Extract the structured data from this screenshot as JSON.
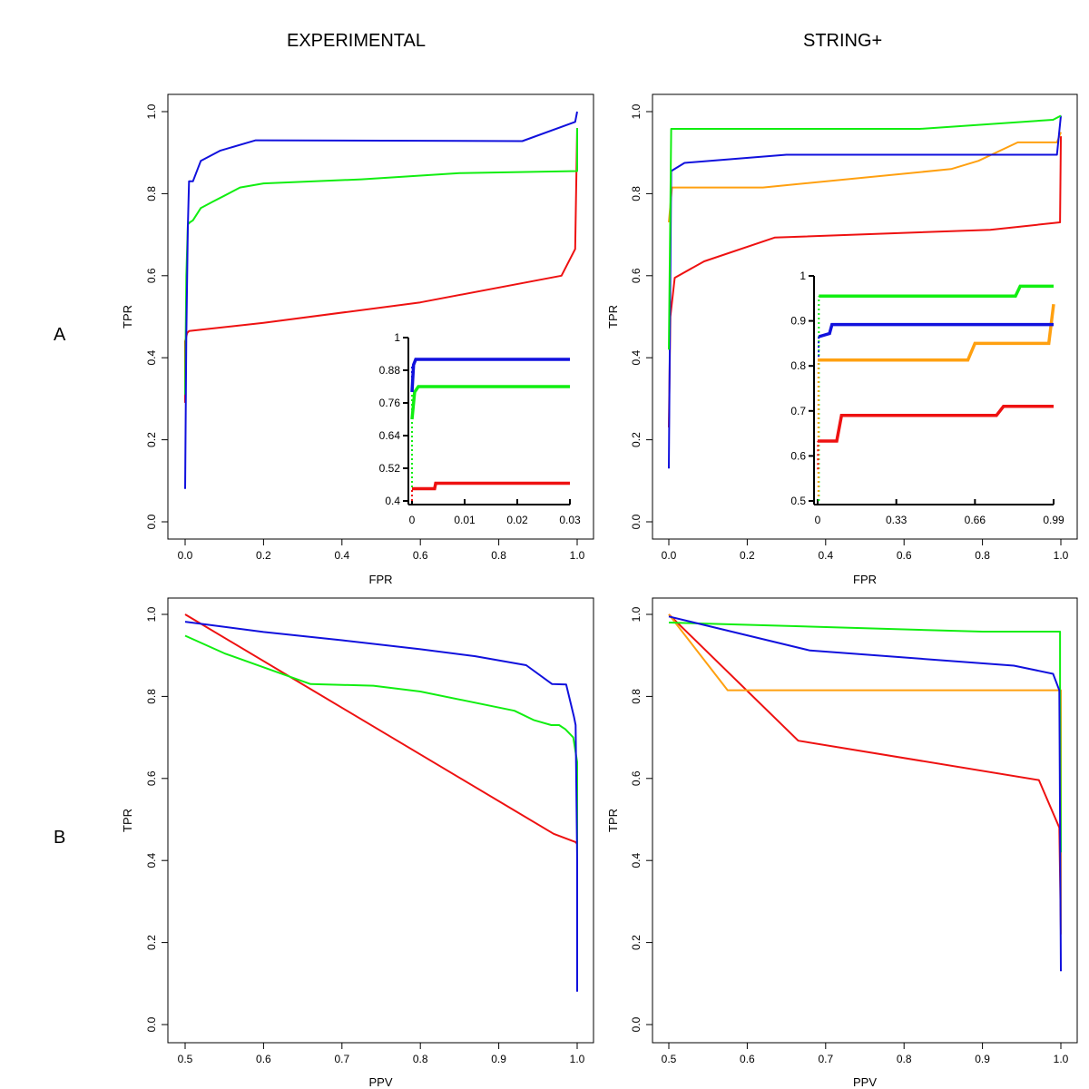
{
  "column_titles": [
    "EXPERIMENTAL",
    "STRING+"
  ],
  "row_labels": [
    "A",
    "B"
  ],
  "colors": {
    "red": "#ee1111",
    "green": "#11ee11",
    "blue": "#1111dd",
    "orange": "#ffa010"
  },
  "chart_data": [
    {
      "id": "A-experimental",
      "type": "line",
      "title": "",
      "xlabel": "FPR",
      "ylabel": "TPR",
      "xlim": [
        0,
        1
      ],
      "ylim": [
        0,
        1
      ],
      "xticks": [
        "0.0",
        "0.2",
        "0.4",
        "0.6",
        "0.8",
        "1.0"
      ],
      "xtick_values": [
        0,
        0.2,
        0.4,
        0.6,
        0.8,
        1.0
      ],
      "yticks": [
        "0.0",
        "0.2",
        "0.4",
        "0.6",
        "0.8",
        "1.0"
      ],
      "ytick_values": [
        0,
        0.2,
        0.4,
        0.6,
        0.8,
        1.0
      ],
      "series": [
        {
          "name": "red",
          "color": "red",
          "x": [
            0,
            0,
            0.005,
            0.01,
            0.2,
            0.6,
            0.96,
            0.995,
            1.0
          ],
          "y": [
            0.29,
            0.44,
            0.46,
            0.465,
            0.485,
            0.535,
            0.6,
            0.665,
            0.96
          ]
        },
        {
          "name": "green",
          "color": "green",
          "x": [
            0,
            0.003,
            0.007,
            0.012,
            0.02,
            0.04,
            0.07,
            0.1,
            0.14,
            0.2,
            0.45,
            0.7,
            1.0,
            1.0
          ],
          "y": [
            0.31,
            0.6,
            0.725,
            0.73,
            0.735,
            0.765,
            0.78,
            0.795,
            0.815,
            0.825,
            0.835,
            0.85,
            0.855,
            0.96
          ]
        },
        {
          "name": "blue",
          "color": "blue",
          "x": [
            0,
            0.003,
            0.007,
            0.01,
            0.02,
            0.04,
            0.09,
            0.18,
            0.86,
            0.995,
            1.0
          ],
          "y": [
            0.08,
            0.45,
            0.72,
            0.83,
            0.83,
            0.88,
            0.905,
            0.93,
            0.928,
            0.975,
            1.0
          ]
        }
      ],
      "inset": {
        "xlim": [
          0,
          0.03
        ],
        "ylim": [
          0.4,
          1
        ],
        "xticks": [
          "0",
          "0.01",
          "0.02",
          "0.03"
        ],
        "xtick_values": [
          0,
          0.01,
          0.02,
          0.03
        ],
        "yticks": [
          "0.4",
          "0.52",
          "0.64",
          "0.76",
          "0.88",
          "1"
        ],
        "ytick_values": [
          0.4,
          0.52,
          0.64,
          0.76,
          0.88,
          1
        ],
        "series": [
          {
            "name": "red",
            "color": "red",
            "x": [
              0,
              0.0043,
              0.0045,
              0.03
            ],
            "y": [
              0.445,
              0.445,
              0.465,
              0.465
            ]
          },
          {
            "name": "green",
            "color": "green",
            "x": [
              0,
              0.0005,
              0.0012,
              0.03
            ],
            "y": [
              0.7,
              0.8,
              0.82,
              0.82
            ]
          },
          {
            "name": "blue",
            "color": "blue",
            "x": [
              0,
              0.0003,
              0.0007,
              0.03
            ],
            "y": [
              0.8,
              0.9,
              0.92,
              0.92
            ]
          }
        ],
        "dotted_series": [
          {
            "name": "green-dotted",
            "color": "green",
            "x": [
              0,
              0
            ],
            "y": [
              0.4,
              0.8
            ]
          },
          {
            "name": "blue-dotted",
            "color": "blue",
            "x": [
              0,
              0
            ],
            "y": [
              0.82,
              0.9
            ]
          },
          {
            "name": "red-dotted",
            "color": "red",
            "x": [
              0,
              0
            ],
            "y": [
              0.4,
              0.445
            ]
          }
        ]
      }
    },
    {
      "id": "A-string",
      "type": "line",
      "title": "",
      "xlabel": "FPR",
      "ylabel": "TPR",
      "xlim": [
        0,
        1
      ],
      "ylim": [
        0,
        1
      ],
      "xticks": [
        "0.0",
        "0.2",
        "0.4",
        "0.6",
        "0.8",
        "1.0"
      ],
      "xtick_values": [
        0,
        0.2,
        0.4,
        0.6,
        0.8,
        1.0
      ],
      "yticks": [
        "0.0",
        "0.2",
        "0.4",
        "0.6",
        "0.8",
        "1.0"
      ],
      "ytick_values": [
        0,
        0.2,
        0.4,
        0.6,
        0.8,
        1.0
      ],
      "series": [
        {
          "name": "red",
          "color": "red",
          "x": [
            0,
            0.004,
            0.015,
            0.09,
            0.27,
            0.82,
            0.998,
            1.0
          ],
          "y": [
            0.23,
            0.5,
            0.595,
            0.635,
            0.693,
            0.712,
            0.73,
            0.94
          ]
        },
        {
          "name": "orange",
          "color": "orange",
          "x": [
            0,
            0.008,
            0.24,
            0.72,
            0.79,
            0.89,
            0.99,
            1.0
          ],
          "y": [
            0.73,
            0.815,
            0.815,
            0.86,
            0.88,
            0.925,
            0.925,
            0.95
          ]
        },
        {
          "name": "blue",
          "color": "blue",
          "x": [
            0,
            0.006,
            0.04,
            0.3,
            0.99,
            1.0
          ],
          "y": [
            0.13,
            0.855,
            0.875,
            0.895,
            0.895,
            0.99
          ]
        },
        {
          "name": "green",
          "color": "green",
          "x": [
            0,
            0.006,
            0.64,
            0.98,
            1.0
          ],
          "y": [
            0.42,
            0.958,
            0.958,
            0.98,
            0.99
          ]
        }
      ],
      "inset": {
        "xlim": [
          0,
          0.99
        ],
        "ylim": [
          0.5,
          1
        ],
        "xticks": [
          "0",
          "0.33",
          "0.66",
          "0.99"
        ],
        "xtick_values": [
          0,
          0.33,
          0.66,
          0.99
        ],
        "yticks": [
          "0.5",
          "0.6",
          "0.7",
          "0.8",
          "0.9",
          "1"
        ],
        "ytick_values": [
          0.5,
          0.6,
          0.7,
          0.8,
          0.9,
          1
        ],
        "series": [
          {
            "name": "red",
            "color": "red",
            "x": [
              0,
              0.08,
              0.1,
              0.75,
              0.78,
              0.99
            ],
            "y": [
              0.633,
              0.633,
              0.69,
              0.69,
              0.71,
              0.71
            ]
          },
          {
            "name": "orange",
            "color": "orange",
            "x": [
              0,
              0.63,
              0.66,
              0.97,
              0.99
            ],
            "y": [
              0.813,
              0.813,
              0.85,
              0.85,
              0.937
            ]
          },
          {
            "name": "blue",
            "color": "blue",
            "x": [
              0.005,
              0.05,
              0.06,
              0.99
            ],
            "y": [
              0.865,
              0.872,
              0.892,
              0.892
            ]
          },
          {
            "name": "green",
            "color": "green",
            "x": [
              0.005,
              0.83,
              0.85,
              0.99
            ],
            "y": [
              0.955,
              0.955,
              0.977,
              0.977
            ]
          }
        ],
        "dotted_series": [
          {
            "name": "green-dotted",
            "color": "green",
            "x": [
              0.005,
              0.005
            ],
            "y": [
              0.5,
              0.955
            ]
          },
          {
            "name": "orange-dotted",
            "color": "orange",
            "x": [
              0.003,
              0.003
            ],
            "y": [
              0.51,
              0.813
            ]
          },
          {
            "name": "red-dotted",
            "color": "red",
            "x": [
              0.001,
              0.001
            ],
            "y": [
              0.57,
              0.633
            ]
          },
          {
            "name": "blue-dotted",
            "color": "blue",
            "x": [
              0.004,
              0.004
            ],
            "y": [
              0.82,
              0.865
            ]
          }
        ]
      }
    },
    {
      "id": "B-experimental",
      "type": "line",
      "title": "",
      "xlabel": "PPV",
      "ylabel": "TPR",
      "xlim": [
        0.5,
        1
      ],
      "ylim": [
        0,
        1
      ],
      "xticks": [
        "0.5",
        "0.6",
        "0.7",
        "0.8",
        "0.9",
        "1.0"
      ],
      "xtick_values": [
        0.5,
        0.6,
        0.7,
        0.8,
        0.9,
        1.0
      ],
      "yticks": [
        "0.0",
        "0.2",
        "0.4",
        "0.6",
        "0.8",
        "1.0"
      ],
      "ytick_values": [
        0,
        0.2,
        0.4,
        0.6,
        0.8,
        1.0
      ],
      "series": [
        {
          "name": "red",
          "color": "red",
          "x": [
            0.5,
            0.97,
            0.998,
            1.0,
            1.0
          ],
          "y": [
            1.0,
            0.465,
            0.445,
            0.44,
            0.29
          ]
        },
        {
          "name": "green",
          "color": "green",
          "x": [
            0.5,
            0.55,
            0.66,
            0.74,
            0.8,
            0.92,
            0.945,
            0.967,
            0.977,
            0.985,
            0.995,
            1.0,
            1.0
          ],
          "y": [
            0.948,
            0.905,
            0.83,
            0.826,
            0.812,
            0.765,
            0.742,
            0.73,
            0.73,
            0.72,
            0.7,
            0.64,
            0.31
          ]
        },
        {
          "name": "blue",
          "color": "blue",
          "x": [
            0.5,
            0.6,
            0.7,
            0.8,
            0.87,
            0.935,
            0.968,
            0.986,
            0.996,
            0.998,
            1.0,
            1.0
          ],
          "y": [
            0.982,
            0.957,
            0.937,
            0.915,
            0.898,
            0.876,
            0.83,
            0.829,
            0.75,
            0.73,
            0.4,
            0.08
          ]
        }
      ]
    },
    {
      "id": "B-string",
      "type": "line",
      "title": "",
      "xlabel": "PPV",
      "ylabel": "TPR",
      "xlim": [
        0.5,
        1
      ],
      "ylim": [
        0,
        1
      ],
      "xticks": [
        "0.5",
        "0.6",
        "0.7",
        "0.8",
        "0.9",
        "1.0"
      ],
      "xtick_values": [
        0.5,
        0.6,
        0.7,
        0.8,
        0.9,
        1.0
      ],
      "yticks": [
        "0.0",
        "0.2",
        "0.4",
        "0.6",
        "0.8",
        "1.0"
      ],
      "ytick_values": [
        0,
        0.2,
        0.4,
        0.6,
        0.8,
        1.0
      ],
      "series": [
        {
          "name": "red",
          "color": "red",
          "x": [
            0.5,
            0.665,
            0.972,
            0.998,
            1.0
          ],
          "y": [
            1.0,
            0.692,
            0.596,
            0.48,
            0.23
          ]
        },
        {
          "name": "orange",
          "color": "orange",
          "x": [
            0.5,
            0.575,
            1.0,
            1.0
          ],
          "y": [
            1.0,
            0.815,
            0.815,
            0.22
          ]
        },
        {
          "name": "green",
          "color": "green",
          "x": [
            0.5,
            0.9,
            0.999,
            0.999,
            1.0
          ],
          "y": [
            0.98,
            0.958,
            0.958,
            0.82,
            0.42
          ]
        },
        {
          "name": "blue",
          "color": "blue",
          "x": [
            0.5,
            0.68,
            0.94,
            0.99,
            0.998,
            1.0
          ],
          "y": [
            0.995,
            0.912,
            0.875,
            0.855,
            0.815,
            0.13
          ]
        }
      ]
    }
  ]
}
